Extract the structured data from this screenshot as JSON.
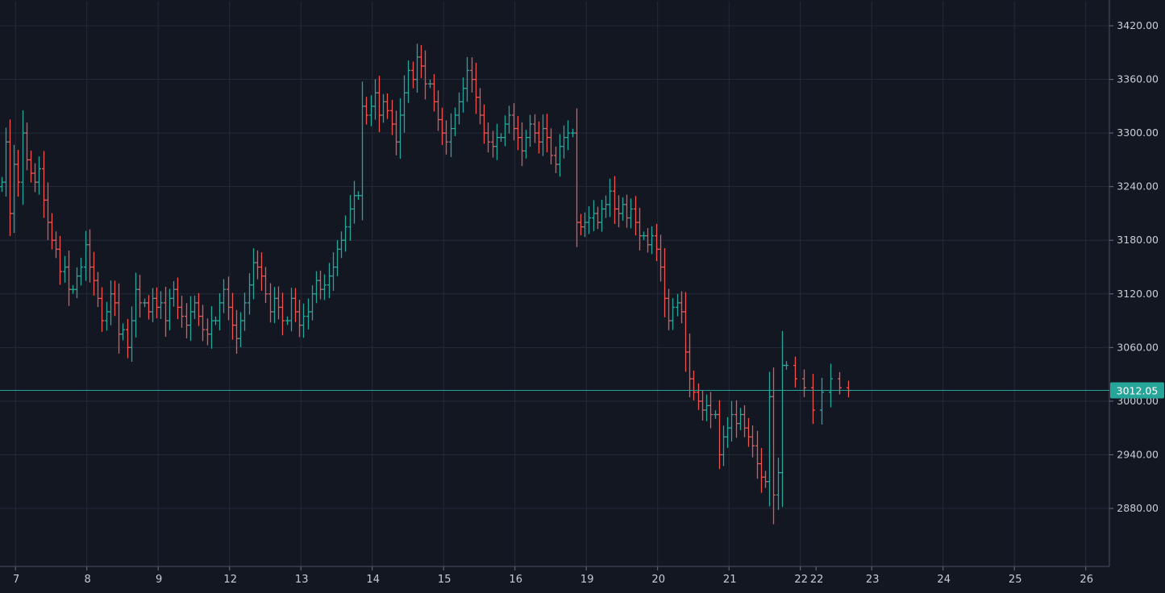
{
  "chart_data": {
    "type": "ohlc",
    "theme": {
      "background": "#131722",
      "grid": "#232a3a",
      "axis_text": "#c9cdd6",
      "up": "#26a69a",
      "down": "#ef5350",
      "last_price_line": "#26a69a",
      "last_price_label_text": "#ffffff"
    },
    "grid": true,
    "y_axis": {
      "side": "right",
      "range": [
        2820,
        3440
      ],
      "ticks": [
        "3420.00",
        "3360.00",
        "3300.00",
        "3240.00",
        "3180.00",
        "3120.00",
        "3060.00",
        "3000.00",
        "2940.00",
        "2880.00"
      ]
    },
    "x_axis": {
      "ticks": [
        {
          "label": "7",
          "pos": 0.2
        },
        {
          "label": "8",
          "pos": 1.2
        },
        {
          "label": "9",
          "pos": 2.2
        },
        {
          "label": "12",
          "pos": 3.2
        },
        {
          "label": "13",
          "pos": 4.2
        },
        {
          "label": "14",
          "pos": 5.2
        },
        {
          "label": "15",
          "pos": 6.2
        },
        {
          "label": "16",
          "pos": 7.2
        },
        {
          "label": "19",
          "pos": 8.2
        },
        {
          "label": "20",
          "pos": 9.2
        },
        {
          "label": "21",
          "pos": 10.2
        },
        {
          "label": "22",
          "pos": 11.2
        },
        {
          "label": "22",
          "pos": 11.42
        },
        {
          "label": "23",
          "pos": 12.2
        },
        {
          "label": "24",
          "pos": 13.2
        },
        {
          "label": "25",
          "pos": 14.2
        },
        {
          "label": "26",
          "pos": 15.2
        }
      ]
    },
    "last_price": 3012.05,
    "last_price_label": "3012.05",
    "segments": [
      {
        "day": "7",
        "start": 0.0,
        "bars": 17,
        "vals": [
          3245,
          3290,
          3210,
          3265,
          3245,
          3300,
          3270,
          3255,
          3245,
          3260,
          3225,
          3200,
          3180,
          3170,
          3145,
          3150,
          3125
        ]
      },
      {
        "day": "8",
        "start": 1.0,
        "bars": 17,
        "vals": [
          3125,
          3140,
          3150,
          3175,
          3150,
          3135,
          3115,
          3090,
          3100,
          3120,
          3110,
          3075,
          3080,
          3060,
          3090,
          3125,
          3110
        ]
      },
      {
        "day": "9",
        "start": 2.0,
        "bars": 17,
        "vals": [
          3110,
          3100,
          3115,
          3105,
          3110,
          3090,
          3115,
          3125,
          3105,
          3095,
          3085,
          3100,
          3110,
          3095,
          3080,
          3075,
          3090
        ]
      },
      {
        "day": "12",
        "start": 3.0,
        "bars": 17,
        "vals": [
          3090,
          3110,
          3125,
          3105,
          3085,
          3070,
          3090,
          3110,
          3130,
          3155,
          3150,
          3140,
          3120,
          3100,
          3115,
          3105,
          3090
        ]
      },
      {
        "day": "13",
        "start": 4.0,
        "bars": 17,
        "vals": [
          3090,
          3115,
          3100,
          3085,
          3095,
          3100,
          3120,
          3135,
          3125,
          3130,
          3140,
          3150,
          3170,
          3180,
          3195,
          3215,
          3230
        ]
      },
      {
        "day": "14",
        "start": 5.0,
        "bars": 17,
        "vals": [
          3230,
          3330,
          3320,
          3330,
          3345,
          3320,
          3335,
          3325,
          3310,
          3290,
          3320,
          3345,
          3370,
          3360,
          3385,
          3375,
          3355
        ]
      },
      {
        "day": "15",
        "start": 6.0,
        "bars": 17,
        "vals": [
          3355,
          3335,
          3315,
          3300,
          3290,
          3305,
          3320,
          3335,
          3350,
          3370,
          3360,
          3340,
          3320,
          3300,
          3290,
          3285,
          3295
        ]
      },
      {
        "day": "16",
        "start": 7.0,
        "bars": 17,
        "vals": [
          3295,
          3310,
          3320,
          3305,
          3295,
          3280,
          3295,
          3310,
          3300,
          3290,
          3305,
          3295,
          3275,
          3265,
          3285,
          3295,
          3300
        ]
      },
      {
        "day": "19",
        "start": 8.0,
        "bars": 17,
        "vals": [
          3300,
          3200,
          3195,
          3200,
          3205,
          3210,
          3200,
          3215,
          3220,
          3235,
          3215,
          3210,
          3220,
          3205,
          3215,
          3200,
          3185
        ]
      },
      {
        "day": "20",
        "start": 9.0,
        "bars": 17,
        "vals": [
          3185,
          3175,
          3185,
          3170,
          3150,
          3115,
          3090,
          3105,
          3110,
          3100,
          3055,
          3025,
          3010,
          3000,
          2990,
          2995,
          2985
        ]
      },
      {
        "day": "21",
        "start": 10.0,
        "bars": 17,
        "vals": [
          2985,
          2940,
          2960,
          2970,
          2985,
          2975,
          2985,
          2970,
          2960,
          2950,
          2930,
          2915,
          2910,
          3005,
          2895,
          2920,
          3040
        ]
      },
      {
        "day": "22",
        "start": 11.0,
        "bars": 8,
        "vals": [
          3040,
          3025,
          3015,
          2990,
          3010,
          3025,
          3015,
          3012.05
        ]
      }
    ]
  }
}
